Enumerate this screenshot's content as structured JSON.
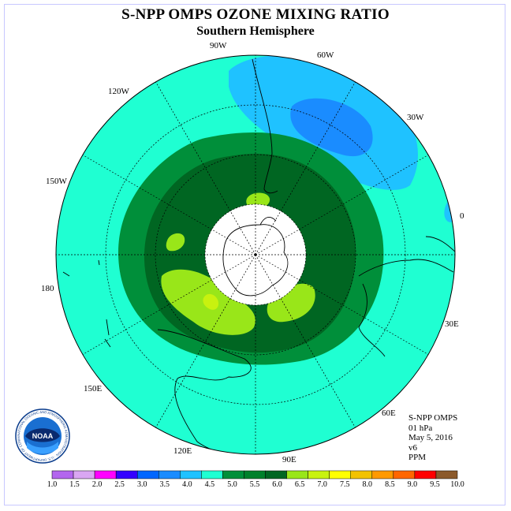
{
  "header": {
    "title": "S-NPP OMPS OZONE MIXING RATIO",
    "subtitle": "Southern Hemisphere"
  },
  "longitude_labels": [
    "90W",
    "60W",
    "30W",
    "0",
    "30E",
    "60E",
    "90E",
    "120E",
    "150E",
    "180",
    "150W",
    "120W"
  ],
  "info": {
    "lines": [
      "S-NPP OMPS",
      "01 hPa",
      "May 5, 2016",
      "v6",
      "PPM"
    ]
  },
  "colorbar": {
    "ticks": [
      "1.0",
      "1.5",
      "2.0",
      "2.5",
      "3.0",
      "3.5",
      "4.0",
      "4.5",
      "5.0",
      "5.5",
      "6.0",
      "6.5",
      "7.0",
      "7.5",
      "8.0",
      "8.5",
      "9.0",
      "9.5",
      "10.0"
    ],
    "colors": [
      "#b366ee",
      "#d9a6f2",
      "#ff00ff",
      "#3300ff",
      "#0066ff",
      "#1a8cff",
      "#1fc2ff",
      "#1fffd2",
      "#008f3a",
      "#00802b",
      "#006622",
      "#99e619",
      "#c8f20f",
      "#ffff00",
      "#f2c200",
      "#ff9900",
      "#ff6600",
      "#ff0000",
      "#8b5a2b"
    ]
  },
  "logo": {
    "text": "NOAA",
    "ring_text": "NATIONAL OCEANIC AND ATMOSPHERIC ADMINISTRATION · U.S. DEPARTMENT OF COMMERCE"
  },
  "colors": {
    "background_field": "#1fffd2",
    "low_field": "#1fc2ff",
    "lower_field": "#1a8cff",
    "mid_ring": "#008f3a",
    "inner_ring": "#006622",
    "high_patch": "#99e619",
    "peak_patch": "#c8f20f"
  }
}
